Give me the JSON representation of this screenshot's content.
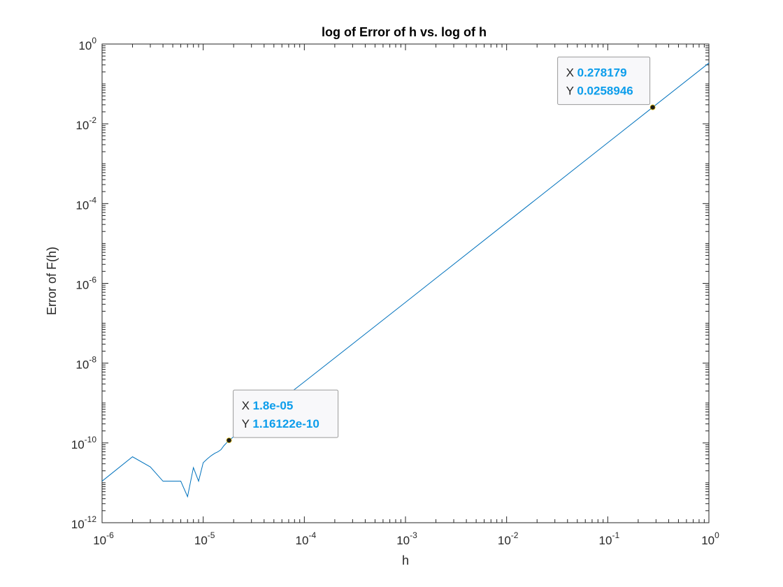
{
  "chart_data": {
    "type": "line",
    "title": "log of Error of h vs. log of h",
    "xlabel": "h",
    "ylabel": "Error of F(h)",
    "xscale": "log",
    "yscale": "log",
    "xlim": [
      1e-06,
      1
    ],
    "ylim": [
      1e-12,
      1
    ],
    "grid": false,
    "legend": "none",
    "line_color": "#0072BD",
    "x_ticks": [
      {
        "value": 1e-06,
        "base": "10",
        "exp": "-6"
      },
      {
        "value": 1e-05,
        "base": "10",
        "exp": "-5"
      },
      {
        "value": 0.0001,
        "base": "10",
        "exp": "-4"
      },
      {
        "value": 0.001,
        "base": "10",
        "exp": "-3"
      },
      {
        "value": 0.01,
        "base": "10",
        "exp": "-2"
      },
      {
        "value": 0.1,
        "base": "10",
        "exp": "-1"
      },
      {
        "value": 1,
        "base": "10",
        "exp": "0"
      }
    ],
    "y_ticks": [
      {
        "value": 1e-12,
        "base": "10",
        "exp": "-12"
      },
      {
        "value": 1e-10,
        "base": "10",
        "exp": "-10"
      },
      {
        "value": 1e-08,
        "base": "10",
        "exp": "-8"
      },
      {
        "value": 1e-06,
        "base": "10",
        "exp": "-6"
      },
      {
        "value": 0.0001,
        "base": "10",
        "exp": "-4"
      },
      {
        "value": 0.01,
        "base": "10",
        "exp": "-2"
      },
      {
        "value": 1,
        "base": "10",
        "exp": "0"
      }
    ],
    "series": [
      {
        "x": [
          1e-06,
          2e-06,
          3e-06,
          4e-06,
          5e-06,
          6e-06,
          7e-06,
          8e-06,
          9e-06,
          1e-05,
          1.1e-05,
          1.2e-05,
          1.3e-05,
          1.4e-05,
          1.5e-05,
          1.6e-05,
          1.7e-05,
          1.8e-05,
          0.0001,
          0.001,
          0.01,
          0.1,
          0.278179,
          1
        ],
        "y": [
          1.1e-11,
          4.5e-11,
          2.5e-11,
          1.1e-11,
          1.1e-11,
          1.1e-11,
          4.5e-12,
          2.4e-11,
          1.1e-11,
          3.2e-11,
          4e-11,
          4.8e-11,
          5.5e-11,
          6e-11,
          6.8e-11,
          8.5e-11,
          1e-10,
          1.16122e-10,
          3.4e-09,
          3.35e-07,
          3.35e-05,
          0.00335,
          0.0258946,
          0.334
        ]
      }
    ],
    "datatips": [
      {
        "x_label": "X",
        "x_value": "1.8e-05",
        "y_label": "Y",
        "y_value": "1.16122e-10",
        "x": 1.8e-05,
        "y": 1.16122e-10
      },
      {
        "x_label": "X",
        "x_value": "0.278179",
        "y_label": "Y",
        "y_value": "0.0258946",
        "x": 0.278179,
        "y": 0.0258946
      }
    ],
    "datatip_value_color": "#0C9DEB"
  }
}
